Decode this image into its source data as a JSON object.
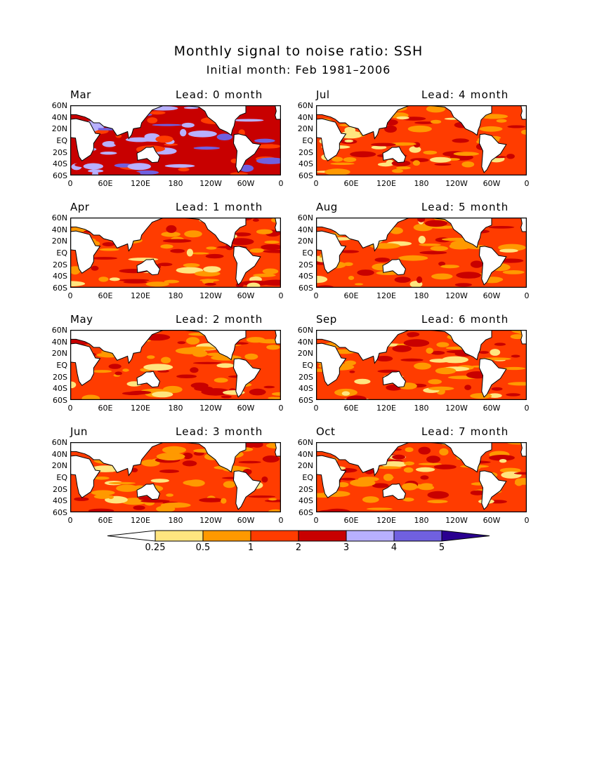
{
  "title": "Monthly signal to noise ratio: SSH",
  "subtitle": "Initial month: Feb 1981–2006",
  "lat_ticks": [
    "60N",
    "40N",
    "20N",
    "EQ",
    "20S",
    "40S",
    "60S"
  ],
  "lon_ticks": [
    "0",
    "60E",
    "120E",
    "180",
    "120W",
    "60W",
    "0"
  ],
  "panels": [
    {
      "month": "Mar",
      "lead": "Lead: 0 month"
    },
    {
      "month": "Jul",
      "lead": "Lead: 4 month"
    },
    {
      "month": "Apr",
      "lead": "Lead: 1 month"
    },
    {
      "month": "Aug",
      "lead": "Lead: 5 month"
    },
    {
      "month": "May",
      "lead": "Lead: 2 month"
    },
    {
      "month": "Sep",
      "lead": "Lead: 6 month"
    },
    {
      "month": "Jun",
      "lead": "Lead: 3 month"
    },
    {
      "month": "Oct",
      "lead": "Lead: 7 month"
    }
  ],
  "colorbar": {
    "labels": [
      "0.25",
      "0.5",
      "1",
      "2",
      "3",
      "4",
      "5"
    ],
    "colors": [
      "#ffffff",
      "#ffe57f",
      "#ff9900",
      "#ff3c00",
      "#c80000",
      "#b8b0ff",
      "#7060e0",
      "#2a0090"
    ]
  }
}
